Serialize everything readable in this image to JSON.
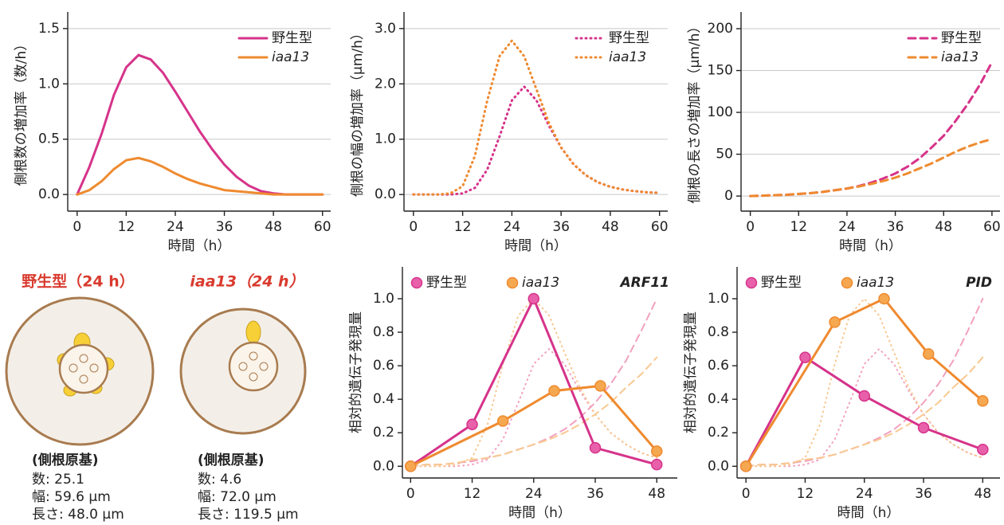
{
  "chart_data": [
    {
      "type": "line",
      "xlabel": "時間（h）",
      "ylabel": "側根数の増加率（数/h）",
      "grid": true,
      "legend": "top-right",
      "xlim": [
        -2.3,
        62
      ],
      "ylim": [
        -0.15,
        1.65
      ],
      "xticks": [
        0,
        12,
        24,
        36,
        48,
        60
      ],
      "yticks": [
        {
          "value": 0,
          "label": "0.0"
        },
        0.5,
        {
          "value": 1,
          "label": "1.0"
        },
        1.5
      ],
      "x": [
        0,
        3,
        6,
        9,
        12,
        15,
        18,
        21,
        24,
        27,
        30,
        33,
        36,
        39,
        42,
        45,
        48,
        51,
        54,
        57,
        60
      ],
      "series": [
        {
          "name": "野生型",
          "color": "#d6338a",
          "style": "solid",
          "values": [
            0,
            0.25,
            0.55,
            0.9,
            1.15,
            1.26,
            1.22,
            1.1,
            0.93,
            0.75,
            0.57,
            0.41,
            0.27,
            0.16,
            0.08,
            0.03,
            0.01,
            0,
            0,
            0,
            0
          ]
        },
        {
          "name": "iaa13",
          "color": "#ef8a2f",
          "style": "solid",
          "values": [
            0,
            0.04,
            0.12,
            0.23,
            0.31,
            0.33,
            0.3,
            0.25,
            0.19,
            0.14,
            0.1,
            0.07,
            0.04,
            0.03,
            0.02,
            0.01,
            0,
            0,
            0,
            0,
            0
          ]
        }
      ]
    },
    {
      "type": "line",
      "xlabel": "時間（h）",
      "ylabel": "側根の幅の増加率（μm/h）",
      "grid": true,
      "legend": "top-right",
      "xlim": [
        -2.3,
        62
      ],
      "ylim": [
        -0.3,
        3.3
      ],
      "xticks": [
        0,
        12,
        24,
        36,
        48,
        60
      ],
      "yticks": [
        {
          "value": 0,
          "label": "0.0"
        },
        {
          "value": 1,
          "label": "1.0"
        },
        {
          "value": 2,
          "label": "2.0"
        },
        {
          "value": 3,
          "label": "3.0"
        }
      ],
      "x": [
        0,
        3,
        6,
        9,
        12,
        15,
        18,
        21,
        24,
        27,
        30,
        33,
        36,
        39,
        42,
        45,
        48,
        51,
        54,
        57,
        60
      ],
      "series": [
        {
          "name": "野生型",
          "color": "#d6338a",
          "style": "dotted",
          "values": [
            0,
            0,
            0,
            0,
            0.02,
            0.12,
            0.45,
            1.05,
            1.7,
            1.95,
            1.7,
            1.25,
            0.85,
            0.55,
            0.35,
            0.22,
            0.14,
            0.09,
            0.06,
            0.04,
            0.03
          ]
        },
        {
          "name": "iaa13",
          "color": "#ef8a2f",
          "style": "dotted",
          "values": [
            0,
            0,
            0,
            0.02,
            0.15,
            0.7,
            1.7,
            2.5,
            2.78,
            2.5,
            1.9,
            1.3,
            0.85,
            0.55,
            0.35,
            0.22,
            0.14,
            0.09,
            0.06,
            0.04,
            0.03
          ]
        }
      ]
    },
    {
      "type": "line",
      "xlabel": "時間（h）",
      "ylabel": "側根の長さの増加率（μm/h）",
      "grid": true,
      "legend": "top-right",
      "xlim": [
        -2.3,
        62
      ],
      "ylim": [
        -18,
        220
      ],
      "xticks": [
        0,
        12,
        24,
        36,
        48,
        60
      ],
      "yticks": [
        0,
        50,
        100,
        150,
        200
      ],
      "x": [
        0,
        3,
        6,
        9,
        12,
        15,
        18,
        21,
        24,
        27,
        30,
        33,
        36,
        39,
        42,
        45,
        48,
        51,
        54,
        57,
        60
      ],
      "series": [
        {
          "name": "野生型",
          "color": "#d6338a",
          "style": "dashed",
          "values": [
            0,
            0.5,
            1,
            1.5,
            2.5,
            3.5,
            5,
            7,
            9,
            12,
            16,
            21,
            27,
            35,
            45,
            58,
            72,
            90,
            110,
            133,
            160
          ]
        },
        {
          "name": "iaa13",
          "color": "#ef8a2f",
          "style": "dashed",
          "values": [
            0,
            0.5,
            1,
            1.5,
            2.5,
            3.5,
            5,
            7,
            9,
            11.5,
            14.5,
            18,
            22,
            27,
            33,
            39,
            46,
            53,
            59,
            64,
            68
          ]
        }
      ]
    },
    {
      "type": "line",
      "annotation": "ARF11",
      "xlabel": "時間（h）",
      "ylabel": "相対的遺伝子発現量",
      "grid": false,
      "legend": "top-left",
      "xlim": [
        -1.6,
        52
      ],
      "ylim": [
        -0.07,
        1.19
      ],
      "xticks": [
        0,
        12,
        24,
        36,
        48
      ],
      "yticks": [
        {
          "value": 0,
          "label": "0.0"
        },
        0.2,
        0.4,
        0.6,
        0.8,
        {
          "value": 1,
          "label": "1.0"
        }
      ],
      "series": [
        {
          "color": "#f2a0c0",
          "style": "dotted",
          "x": [
            0,
            3,
            6,
            9,
            12,
            15,
            18,
            21,
            24,
            27,
            30,
            33,
            36,
            39,
            42,
            45,
            48
          ],
          "values": [
            0,
            0,
            0,
            0,
            0.01,
            0.04,
            0.16,
            0.38,
            0.61,
            0.7,
            0.61,
            0.45,
            0.31,
            0.2,
            0.13,
            0.08,
            0.05
          ]
        },
        {
          "color": "#f8c890",
          "style": "dotted",
          "x": [
            0,
            3,
            6,
            9,
            12,
            15,
            18,
            21,
            24,
            27,
            30,
            33,
            36,
            39,
            42,
            45,
            48
          ],
          "values": [
            0,
            0,
            0,
            0.01,
            0.05,
            0.25,
            0.61,
            0.9,
            1.0,
            0.9,
            0.68,
            0.47,
            0.31,
            0.2,
            0.13,
            0.08,
            0.05
          ]
        },
        {
          "color": "#f2a0c0",
          "style": "dashed",
          "x": [
            0,
            3,
            6,
            9,
            12,
            15,
            18,
            21,
            24,
            27,
            30,
            33,
            36,
            39,
            42,
            45,
            48
          ],
          "values": [
            0,
            0.01,
            0.01,
            0.02,
            0.03,
            0.05,
            0.07,
            0.1,
            0.13,
            0.17,
            0.22,
            0.29,
            0.38,
            0.49,
            0.63,
            0.81,
            1.0
          ]
        },
        {
          "color": "#f8c890",
          "style": "dashed",
          "x": [
            0,
            3,
            6,
            9,
            12,
            15,
            18,
            21,
            24,
            27,
            30,
            33,
            36,
            39,
            42,
            45,
            48
          ],
          "values": [
            0,
            0.01,
            0.01,
            0.02,
            0.04,
            0.05,
            0.07,
            0.1,
            0.13,
            0.16,
            0.2,
            0.25,
            0.31,
            0.38,
            0.47,
            0.55,
            0.65
          ]
        },
        {
          "name": "野生型",
          "color": "#d6338a",
          "marker_color": "#e860aa",
          "style": "solid",
          "x": [
            0,
            12,
            24,
            36,
            48
          ],
          "values": [
            0,
            0.25,
            1.0,
            0.11,
            0.01
          ]
        },
        {
          "name": "iaa13",
          "color": "#ef8a2f",
          "marker_color": "#f5a850",
          "style": "solid",
          "x": [
            0,
            18,
            28,
            37,
            48
          ],
          "values": [
            0,
            0.27,
            0.45,
            0.48,
            0.09
          ]
        }
      ]
    },
    {
      "type": "line",
      "annotation": "PID",
      "xlabel": "時間（h）",
      "ylabel": "相対的遺伝子発現量",
      "grid": false,
      "legend": "top-left",
      "xlim": [
        -1.8,
        51.5
      ],
      "ylim": [
        -0.07,
        1.19
      ],
      "xticks": [
        0,
        12,
        24,
        36,
        48
      ],
      "yticks": [
        {
          "value": 0,
          "label": "0.0"
        },
        0.2,
        0.4,
        0.6,
        0.8,
        {
          "value": 1,
          "label": "1.0"
        }
      ],
      "series": [
        {
          "color": "#f2a0c0",
          "style": "dotted",
          "x": [
            0,
            3,
            6,
            9,
            12,
            15,
            18,
            21,
            24,
            27,
            30,
            33,
            36,
            39,
            42,
            45,
            48
          ],
          "values": [
            0,
            0,
            0,
            0,
            0.01,
            0.04,
            0.16,
            0.38,
            0.61,
            0.7,
            0.61,
            0.45,
            0.31,
            0.2,
            0.13,
            0.08,
            0.05
          ]
        },
        {
          "color": "#f8c890",
          "style": "dotted",
          "x": [
            0,
            3,
            6,
            9,
            12,
            15,
            18,
            21,
            24,
            27,
            30,
            33,
            36,
            39,
            42,
            45,
            48
          ],
          "values": [
            0,
            0,
            0,
            0.01,
            0.05,
            0.25,
            0.61,
            0.9,
            1.0,
            0.9,
            0.68,
            0.47,
            0.31,
            0.2,
            0.13,
            0.08,
            0.05
          ]
        },
        {
          "color": "#f2a0c0",
          "style": "dashed",
          "x": [
            0,
            3,
            6,
            9,
            12,
            15,
            18,
            21,
            24,
            27,
            30,
            33,
            36,
            39,
            42,
            45,
            48
          ],
          "values": [
            0,
            0.01,
            0.01,
            0.02,
            0.03,
            0.05,
            0.07,
            0.1,
            0.13,
            0.17,
            0.22,
            0.29,
            0.38,
            0.49,
            0.63,
            0.81,
            1.0
          ]
        },
        {
          "color": "#f8c890",
          "style": "dashed",
          "x": [
            0,
            3,
            6,
            9,
            12,
            15,
            18,
            21,
            24,
            27,
            30,
            33,
            36,
            39,
            42,
            45,
            48
          ],
          "values": [
            0,
            0.01,
            0.01,
            0.02,
            0.04,
            0.05,
            0.07,
            0.1,
            0.13,
            0.16,
            0.2,
            0.25,
            0.31,
            0.38,
            0.47,
            0.55,
            0.65
          ]
        },
        {
          "name": "野生型",
          "color": "#d6338a",
          "marker_color": "#e860aa",
          "style": "solid",
          "x": [
            0,
            12,
            24,
            36,
            48
          ],
          "values": [
            0,
            0.65,
            0.42,
            0.23,
            0.1
          ]
        },
        {
          "name": "iaa13",
          "color": "#ef8a2f",
          "marker_color": "#f5a850",
          "style": "solid",
          "x": [
            0,
            18,
            28,
            37,
            48
          ],
          "values": [
            0,
            0.86,
            1.0,
            0.67,
            0.39
          ]
        }
      ]
    }
  ],
  "diagrams": [
    {
      "title": "野生型（24 h）",
      "heading": "(側根原基)",
      "lines": [
        "数: 25.1",
        "幅: 59.6 μm",
        "長さ: 48.0 μm"
      ]
    },
    {
      "title": "iaa13（24 h）",
      "heading": "(側根原基)",
      "lines": [
        "数: 4.6",
        "幅: 72.0 μm",
        "長さ: 119.5 μm"
      ]
    }
  ]
}
